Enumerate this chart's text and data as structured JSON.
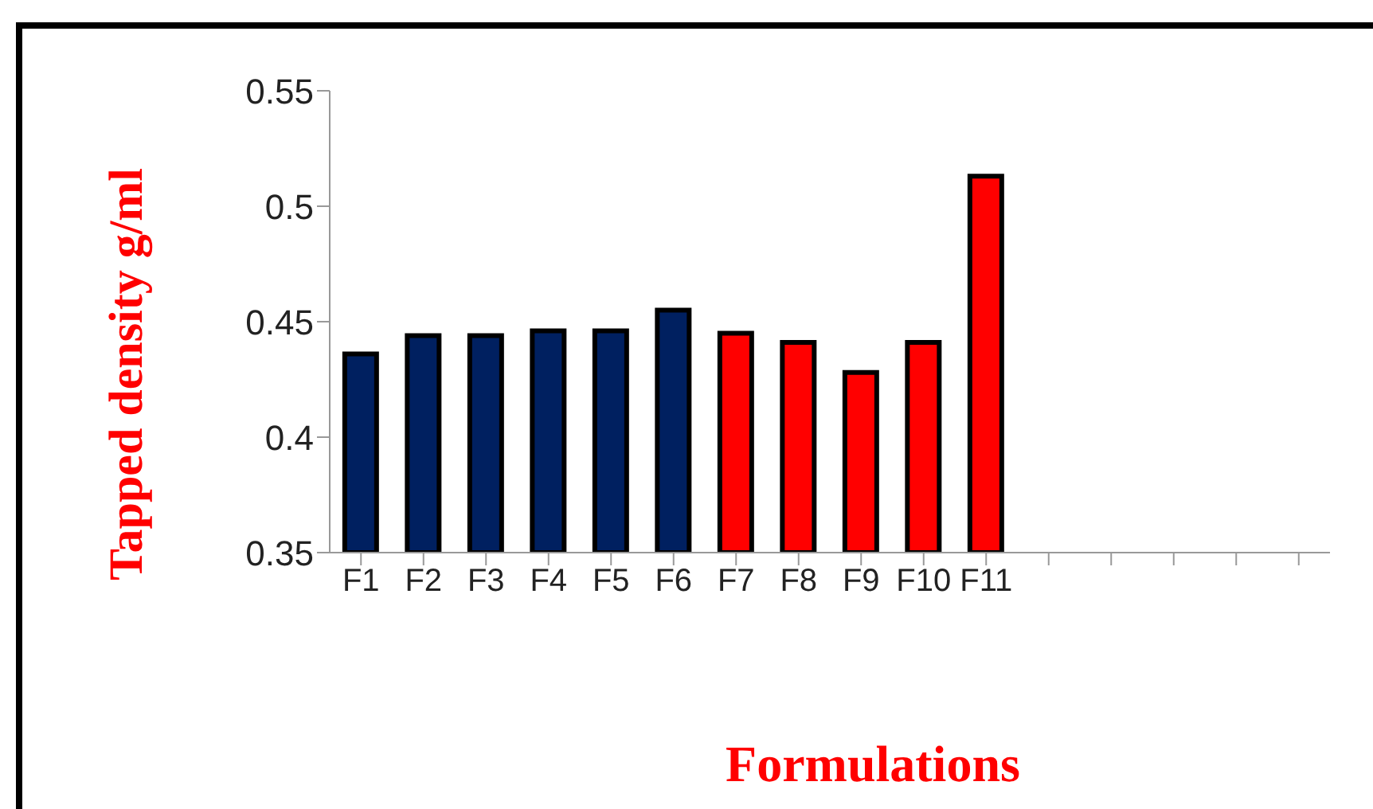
{
  "chart_data": {
    "type": "bar",
    "xlabel": "Formulations",
    "ylabel": "Tapped density g/ml",
    "categories": [
      "F1",
      "F2",
      "F3",
      "F4",
      "F5",
      "F6",
      "F7",
      "F8",
      "F9",
      "F10",
      "F11",
      null,
      null,
      null,
      null,
      null
    ],
    "values": [
      0.436,
      0.444,
      0.444,
      0.446,
      0.446,
      0.455,
      0.445,
      0.441,
      0.428,
      0.441,
      0.513,
      null,
      null,
      null,
      null,
      null
    ],
    "colors": [
      "#002060",
      "#002060",
      "#002060",
      "#002060",
      "#002060",
      "#002060",
      "#ff0000",
      "#ff0000",
      "#ff0000",
      "#ff0000",
      "#ff0000",
      null,
      null,
      null,
      null,
      null
    ],
    "ylim": [
      0.35,
      0.55
    ],
    "yticks": [
      0.35,
      0.4,
      0.45,
      0.5,
      0.55
    ],
    "grid": false
  }
}
